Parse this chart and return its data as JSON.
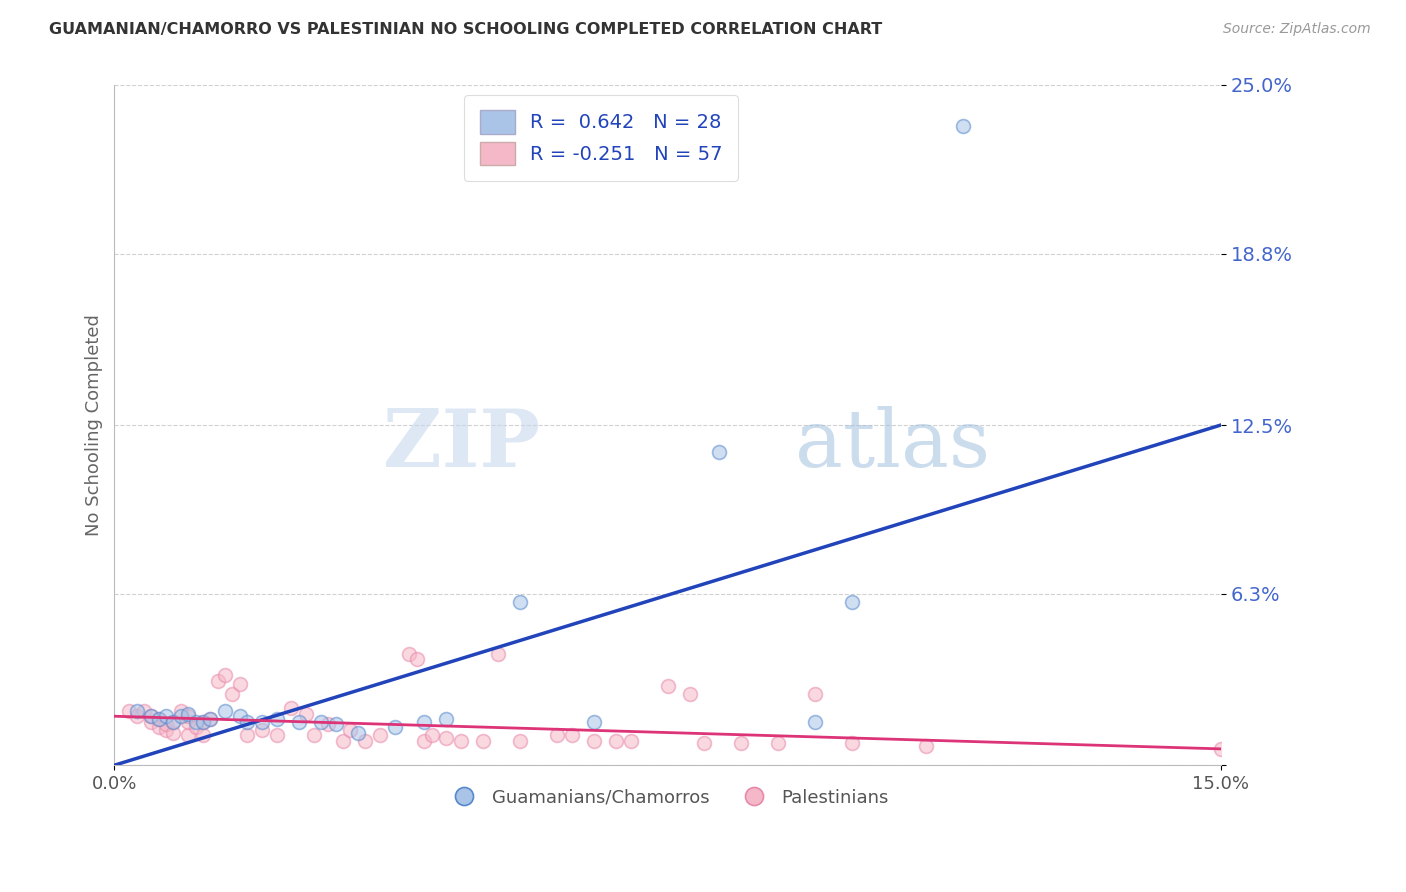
{
  "title": "GUAMANIAN/CHAMORRO VS PALESTINIAN NO SCHOOLING COMPLETED CORRELATION CHART",
  "source": "Source: ZipAtlas.com",
  "ylabel": "No Schooling Completed",
  "xlim": [
    0.0,
    0.15
  ],
  "ylim": [
    0.0,
    0.25
  ],
  "yticks": [
    0.0,
    0.063,
    0.125,
    0.188,
    0.25
  ],
  "ytick_labels": [
    "",
    "6.3%",
    "12.5%",
    "18.8%",
    "25.0%"
  ],
  "xtick_labels": [
    "0.0%",
    "15.0%"
  ],
  "xtick_positions": [
    0.0,
    0.15
  ],
  "background_color": "#ffffff",
  "watermark_zip": "ZIP",
  "watermark_atlas": "atlas",
  "legend_r_blue": "R =  0.642",
  "legend_n_blue": "N = 28",
  "legend_r_pink": "R = -0.251",
  "legend_n_pink": "N = 57",
  "blue_color": "#aac4e8",
  "pink_color": "#f5b8c8",
  "blue_edge_color": "#5588cc",
  "pink_edge_color": "#e888aa",
  "blue_line_color": "#2244bb",
  "pink_line_color": "#dd3377",
  "title_color": "#333333",
  "ytick_color": "#4466cc",
  "blue_scatter": [
    [
      0.003,
      0.02
    ],
    [
      0.005,
      0.018
    ],
    [
      0.006,
      0.017
    ],
    [
      0.007,
      0.018
    ],
    [
      0.008,
      0.016
    ],
    [
      0.009,
      0.018
    ],
    [
      0.01,
      0.019
    ],
    [
      0.011,
      0.016
    ],
    [
      0.012,
      0.016
    ],
    [
      0.013,
      0.017
    ],
    [
      0.015,
      0.02
    ],
    [
      0.017,
      0.018
    ],
    [
      0.018,
      0.016
    ],
    [
      0.02,
      0.016
    ],
    [
      0.022,
      0.017
    ],
    [
      0.025,
      0.016
    ],
    [
      0.028,
      0.016
    ],
    [
      0.03,
      0.015
    ],
    [
      0.033,
      0.012
    ],
    [
      0.038,
      0.014
    ],
    [
      0.042,
      0.016
    ],
    [
      0.045,
      0.017
    ],
    [
      0.055,
      0.06
    ],
    [
      0.065,
      0.016
    ],
    [
      0.082,
      0.115
    ],
    [
      0.095,
      0.016
    ],
    [
      0.1,
      0.06
    ],
    [
      0.115,
      0.235
    ]
  ],
  "pink_scatter": [
    [
      0.002,
      0.02
    ],
    [
      0.003,
      0.018
    ],
    [
      0.004,
      0.02
    ],
    [
      0.005,
      0.016
    ],
    [
      0.005,
      0.018
    ],
    [
      0.006,
      0.014
    ],
    [
      0.006,
      0.017
    ],
    [
      0.007,
      0.013
    ],
    [
      0.007,
      0.015
    ],
    [
      0.008,
      0.012
    ],
    [
      0.008,
      0.016
    ],
    [
      0.009,
      0.02
    ],
    [
      0.01,
      0.011
    ],
    [
      0.01,
      0.016
    ],
    [
      0.01,
      0.018
    ],
    [
      0.011,
      0.014
    ],
    [
      0.012,
      0.011
    ],
    [
      0.012,
      0.016
    ],
    [
      0.013,
      0.017
    ],
    [
      0.014,
      0.031
    ],
    [
      0.015,
      0.033
    ],
    [
      0.016,
      0.026
    ],
    [
      0.017,
      0.03
    ],
    [
      0.018,
      0.011
    ],
    [
      0.02,
      0.013
    ],
    [
      0.022,
      0.011
    ],
    [
      0.024,
      0.021
    ],
    [
      0.026,
      0.019
    ],
    [
      0.027,
      0.011
    ],
    [
      0.029,
      0.015
    ],
    [
      0.031,
      0.009
    ],
    [
      0.032,
      0.013
    ],
    [
      0.034,
      0.009
    ],
    [
      0.036,
      0.011
    ],
    [
      0.04,
      0.041
    ],
    [
      0.041,
      0.039
    ],
    [
      0.042,
      0.009
    ],
    [
      0.043,
      0.011
    ],
    [
      0.045,
      0.01
    ],
    [
      0.047,
      0.009
    ],
    [
      0.05,
      0.009
    ],
    [
      0.052,
      0.041
    ],
    [
      0.055,
      0.009
    ],
    [
      0.06,
      0.011
    ],
    [
      0.062,
      0.011
    ],
    [
      0.065,
      0.009
    ],
    [
      0.068,
      0.009
    ],
    [
      0.07,
      0.009
    ],
    [
      0.075,
      0.029
    ],
    [
      0.078,
      0.026
    ],
    [
      0.08,
      0.008
    ],
    [
      0.085,
      0.008
    ],
    [
      0.09,
      0.008
    ],
    [
      0.095,
      0.026
    ],
    [
      0.1,
      0.008
    ],
    [
      0.11,
      0.007
    ],
    [
      0.15,
      0.006
    ]
  ],
  "blue_trendline_x": [
    0.0,
    0.15
  ],
  "blue_trendline_y": [
    0.0,
    0.125
  ],
  "pink_trendline_x": [
    0.0,
    0.15
  ],
  "pink_trendline_y": [
    0.018,
    0.006
  ],
  "grid_color": "#cccccc",
  "dot_size": 100,
  "dot_alpha": 0.55,
  "dot_linewidth": 1.2
}
